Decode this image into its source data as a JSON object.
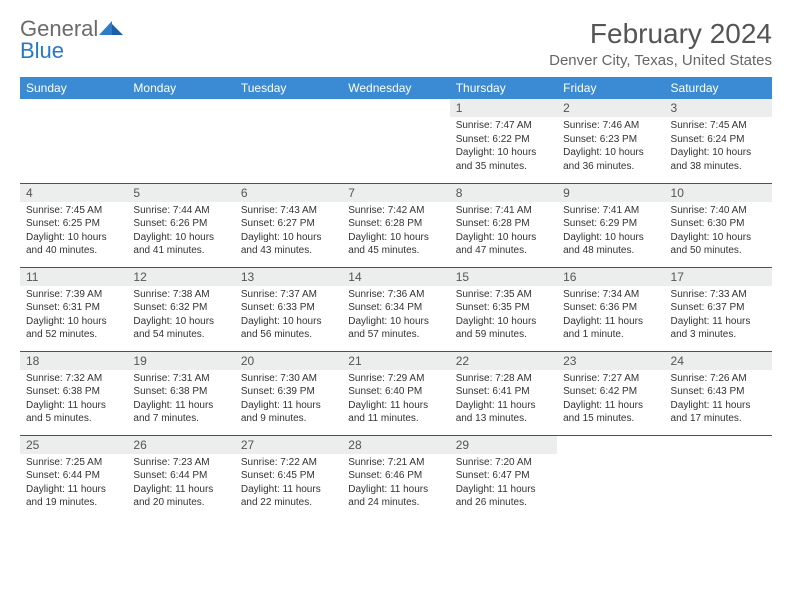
{
  "logo": {
    "word1": "General",
    "word2": "Blue"
  },
  "title": "February 2024",
  "location": "Denver City, Texas, United States",
  "colors": {
    "header_bg": "#3b8bd4",
    "row_border": "#2a5a8a",
    "daynum_bg": "#eceded",
    "logo_blue": "#2878c8",
    "text": "#333333"
  },
  "dayHeaders": [
    "Sunday",
    "Monday",
    "Tuesday",
    "Wednesday",
    "Thursday",
    "Friday",
    "Saturday"
  ],
  "weeks": [
    [
      null,
      null,
      null,
      null,
      {
        "n": "1",
        "sr": "7:47 AM",
        "ss": "6:22 PM",
        "dl": "10 hours and 35 minutes."
      },
      {
        "n": "2",
        "sr": "7:46 AM",
        "ss": "6:23 PM",
        "dl": "10 hours and 36 minutes."
      },
      {
        "n": "3",
        "sr": "7:45 AM",
        "ss": "6:24 PM",
        "dl": "10 hours and 38 minutes."
      }
    ],
    [
      {
        "n": "4",
        "sr": "7:45 AM",
        "ss": "6:25 PM",
        "dl": "10 hours and 40 minutes."
      },
      {
        "n": "5",
        "sr": "7:44 AM",
        "ss": "6:26 PM",
        "dl": "10 hours and 41 minutes."
      },
      {
        "n": "6",
        "sr": "7:43 AM",
        "ss": "6:27 PM",
        "dl": "10 hours and 43 minutes."
      },
      {
        "n": "7",
        "sr": "7:42 AM",
        "ss": "6:28 PM",
        "dl": "10 hours and 45 minutes."
      },
      {
        "n": "8",
        "sr": "7:41 AM",
        "ss": "6:28 PM",
        "dl": "10 hours and 47 minutes."
      },
      {
        "n": "9",
        "sr": "7:41 AM",
        "ss": "6:29 PM",
        "dl": "10 hours and 48 minutes."
      },
      {
        "n": "10",
        "sr": "7:40 AM",
        "ss": "6:30 PM",
        "dl": "10 hours and 50 minutes."
      }
    ],
    [
      {
        "n": "11",
        "sr": "7:39 AM",
        "ss": "6:31 PM",
        "dl": "10 hours and 52 minutes."
      },
      {
        "n": "12",
        "sr": "7:38 AM",
        "ss": "6:32 PM",
        "dl": "10 hours and 54 minutes."
      },
      {
        "n": "13",
        "sr": "7:37 AM",
        "ss": "6:33 PM",
        "dl": "10 hours and 56 minutes."
      },
      {
        "n": "14",
        "sr": "7:36 AM",
        "ss": "6:34 PM",
        "dl": "10 hours and 57 minutes."
      },
      {
        "n": "15",
        "sr": "7:35 AM",
        "ss": "6:35 PM",
        "dl": "10 hours and 59 minutes."
      },
      {
        "n": "16",
        "sr": "7:34 AM",
        "ss": "6:36 PM",
        "dl": "11 hours and 1 minute."
      },
      {
        "n": "17",
        "sr": "7:33 AM",
        "ss": "6:37 PM",
        "dl": "11 hours and 3 minutes."
      }
    ],
    [
      {
        "n": "18",
        "sr": "7:32 AM",
        "ss": "6:38 PM",
        "dl": "11 hours and 5 minutes."
      },
      {
        "n": "19",
        "sr": "7:31 AM",
        "ss": "6:38 PM",
        "dl": "11 hours and 7 minutes."
      },
      {
        "n": "20",
        "sr": "7:30 AM",
        "ss": "6:39 PM",
        "dl": "11 hours and 9 minutes."
      },
      {
        "n": "21",
        "sr": "7:29 AM",
        "ss": "6:40 PM",
        "dl": "11 hours and 11 minutes."
      },
      {
        "n": "22",
        "sr": "7:28 AM",
        "ss": "6:41 PM",
        "dl": "11 hours and 13 minutes."
      },
      {
        "n": "23",
        "sr": "7:27 AM",
        "ss": "6:42 PM",
        "dl": "11 hours and 15 minutes."
      },
      {
        "n": "24",
        "sr": "7:26 AM",
        "ss": "6:43 PM",
        "dl": "11 hours and 17 minutes."
      }
    ],
    [
      {
        "n": "25",
        "sr": "7:25 AM",
        "ss": "6:44 PM",
        "dl": "11 hours and 19 minutes."
      },
      {
        "n": "26",
        "sr": "7:23 AM",
        "ss": "6:44 PM",
        "dl": "11 hours and 20 minutes."
      },
      {
        "n": "27",
        "sr": "7:22 AM",
        "ss": "6:45 PM",
        "dl": "11 hours and 22 minutes."
      },
      {
        "n": "28",
        "sr": "7:21 AM",
        "ss": "6:46 PM",
        "dl": "11 hours and 24 minutes."
      },
      {
        "n": "29",
        "sr": "7:20 AM",
        "ss": "6:47 PM",
        "dl": "11 hours and 26 minutes."
      },
      null,
      null
    ]
  ],
  "labels": {
    "sunrise": "Sunrise:",
    "sunset": "Sunset:",
    "daylight": "Daylight:"
  }
}
